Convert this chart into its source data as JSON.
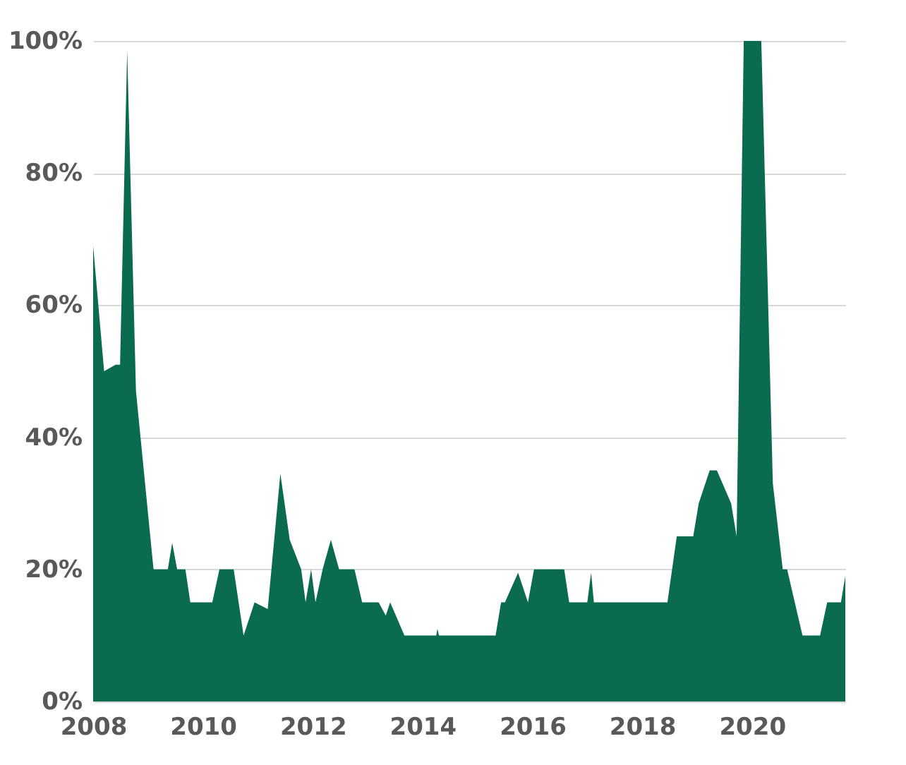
{
  "chart_data": {
    "type": "area",
    "x": [
      2008.0,
      2008.2,
      2008.41,
      2008.49,
      2008.62,
      2008.78,
      2009.1,
      2009.36,
      2009.44,
      2009.53,
      2009.68,
      2009.77,
      2010.17,
      2010.3,
      2010.56,
      2010.74,
      2010.94,
      2011.18,
      2011.41,
      2011.58,
      2011.79,
      2011.87,
      2011.97,
      2012.05,
      2012.18,
      2012.33,
      2012.48,
      2012.76,
      2012.9,
      2013.2,
      2013.33,
      2013.41,
      2013.67,
      2014.25,
      2014.27,
      2014.3,
      2015.33,
      2015.43,
      2015.5,
      2015.74,
      2015.92,
      2016.03,
      2016.58,
      2016.67,
      2017.0,
      2017.07,
      2017.12,
      2017.56,
      2018.46,
      2018.63,
      2018.93,
      2019.03,
      2019.23,
      2019.36,
      2019.62,
      2019.72,
      2019.85,
      2020.17,
      2020.38,
      2020.56,
      2020.64,
      2020.92,
      2021.24,
      2021.37,
      2021.62,
      2021.7
    ],
    "series": [
      {
        "color": "#0a6b4f",
        "values": [
          69,
          50,
          51,
          51,
          98.5,
          47,
          20,
          20,
          24,
          20,
          20,
          15,
          15,
          20,
          20,
          10,
          15,
          14,
          34.5,
          24.5,
          20,
          15,
          20,
          15,
          20,
          24.5,
          20,
          20,
          15,
          15,
          13,
          15,
          10,
          10,
          11,
          10,
          10,
          15,
          15,
          19.5,
          15,
          20,
          20,
          15,
          15,
          19.5,
          15,
          15,
          15,
          25,
          25,
          30,
          35,
          35,
          30,
          25,
          100,
          100,
          33,
          20,
          20,
          10,
          10,
          15,
          15,
          19
        ]
      }
    ],
    "xlim": [
      2008,
      2021.7
    ],
    "xticks": [
      2008,
      2010,
      2012,
      2014,
      2016,
      2018,
      2020
    ],
    "ylim": [
      0,
      100
    ],
    "yticks": [
      {
        "value": 0,
        "label": "0%"
      },
      {
        "value": 20,
        "label": "20%"
      },
      {
        "value": 40,
        "label": "40%"
      },
      {
        "value": 60,
        "label": "60%"
      },
      {
        "value": 80,
        "label": "80%"
      },
      {
        "value": 100,
        "label": "100%"
      }
    ],
    "grid": "y"
  }
}
